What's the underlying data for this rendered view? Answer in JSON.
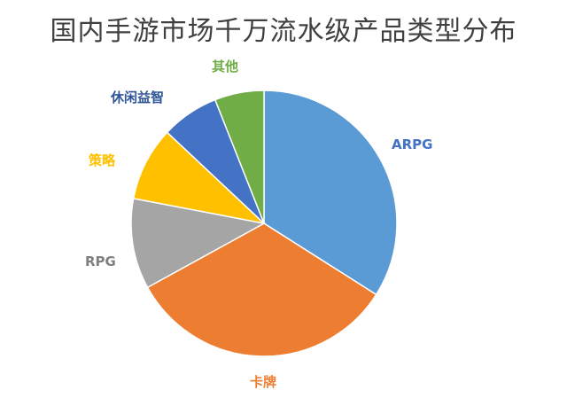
{
  "chart_data": {
    "type": "pie",
    "title": "国内手游市场千万流水级产品类型分布",
    "start": "top, clockwise",
    "slices": [
      {
        "label": "ARPG",
        "value": 34,
        "color": "#5b9bd5",
        "label_color": "#4472c4"
      },
      {
        "label": "卡牌",
        "value": 33,
        "color": "#ed7d31",
        "label_color": "#ed7d31"
      },
      {
        "label": "RPG",
        "value": 11,
        "color": "#a5a5a5",
        "label_color": "#7f7f7f"
      },
      {
        "label": "策略",
        "value": 9,
        "color": "#ffc000",
        "label_color": "#ffc000"
      },
      {
        "label": "休闲益智",
        "value": 7,
        "color": "#4472c4",
        "label_color": "#2f5597"
      },
      {
        "label": "其他",
        "value": 6,
        "color": "#70ad47",
        "label_color": "#70ad47"
      }
    ]
  }
}
